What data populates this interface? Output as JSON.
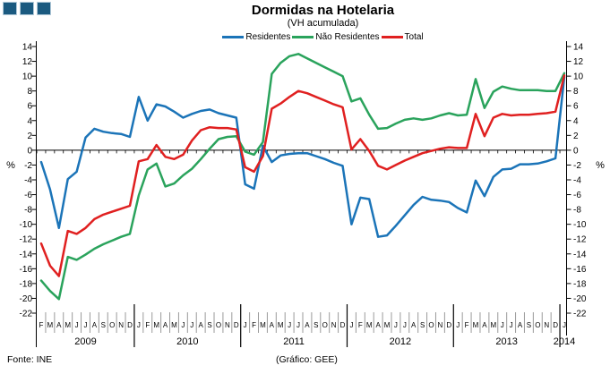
{
  "title": "Dormidas na Hotelaria",
  "subtitle": "(VH acumulada)",
  "legend": [
    {
      "label": "Residentes",
      "color": "#1b74b8"
    },
    {
      "label": "Não Residentes",
      "color": "#2aa35c"
    },
    {
      "label": "Total",
      "color": "#e02020"
    }
  ],
  "logo": {
    "squares": 3,
    "fill": "#1b5a80",
    "border": "#b0c8d8"
  },
  "footer": {
    "source": "Fonte: INE",
    "credit": "(Gráfico: GEE)"
  },
  "chart_data": {
    "type": "line",
    "title": "Dormidas na Hotelaria",
    "subtitle": "(VH acumulada)",
    "ylabel": "%",
    "ylim": [
      -22,
      14
    ],
    "ytick_step": 2,
    "grid": false,
    "legend_position": "top",
    "yticks": [
      14,
      12,
      10,
      8,
      6,
      4,
      2,
      0,
      -2,
      -4,
      -6,
      -8,
      -10,
      -12,
      -14,
      -16,
      -18,
      -20,
      -22
    ],
    "months": [
      "F",
      "M",
      "A",
      "M",
      "J",
      "J",
      "A",
      "S",
      "O",
      "N",
      "D",
      "J",
      "F",
      "M",
      "A",
      "M",
      "J",
      "J",
      "A",
      "S",
      "O",
      "N",
      "D",
      "J",
      "F",
      "M",
      "A",
      "M",
      "J",
      "J",
      "A",
      "S",
      "O",
      "N",
      "D",
      "J",
      "F",
      "M",
      "A",
      "M",
      "J",
      "J",
      "A",
      "S",
      "O",
      "N",
      "D",
      "J",
      "F",
      "M",
      "A",
      "M",
      "J",
      "J",
      "A",
      "S",
      "O",
      "N",
      "D",
      "J"
    ],
    "years": [
      {
        "label": "2009",
        "months": 11
      },
      {
        "label": "2010",
        "months": 12
      },
      {
        "label": "2011",
        "months": 12
      },
      {
        "label": "2012",
        "months": 12
      },
      {
        "label": "2013",
        "months": 12
      },
      {
        "label": "2014",
        "months": 1
      }
    ],
    "series": [
      {
        "name": "Residentes",
        "key": "residentes",
        "color": "#1b74b8",
        "values": [
          -1.6,
          -5.3,
          -10.5,
          -3.9,
          -2.9,
          1.7,
          2.9,
          2.5,
          2.3,
          2.2,
          1.8,
          7.2,
          4.0,
          6.2,
          5.9,
          5.2,
          4.4,
          4.9,
          5.3,
          5.5,
          5.0,
          4.7,
          4.4,
          -4.6,
          -5.2,
          0.6,
          -1.6,
          -0.7,
          -0.5,
          -0.4,
          -0.4,
          -0.8,
          -1.2,
          -1.7,
          -2.1,
          -10.0,
          -6.4,
          -6.6,
          -11.7,
          -11.5,
          -10.2,
          -8.8,
          -7.4,
          -6.3,
          -6.7,
          -6.8,
          -7.0,
          -7.8,
          -8.4,
          -4.1,
          -6.2,
          -3.6,
          -2.6,
          -2.5,
          -1.9,
          -1.9,
          -1.8,
          -1.5,
          -1.1,
          9.9
        ]
      },
      {
        "name": "Não Residentes",
        "key": "nao-residentes",
        "color": "#2aa35c",
        "values": [
          -17.6,
          -19.0,
          -20.1,
          -14.4,
          -14.8,
          -14.1,
          -13.3,
          -12.7,
          -12.2,
          -11.7,
          -11.3,
          -6.1,
          -2.6,
          -1.8,
          -4.9,
          -4.5,
          -3.4,
          -2.5,
          -1.2,
          0.2,
          1.5,
          1.8,
          1.9,
          -0.2,
          -0.6,
          1.1,
          10.3,
          11.8,
          12.7,
          13.0,
          12.4,
          11.8,
          11.2,
          10.6,
          10.0,
          6.6,
          7.0,
          4.8,
          2.9,
          3.0,
          3.6,
          4.1,
          4.3,
          4.1,
          4.3,
          4.7,
          5.0,
          4.7,
          4.8,
          9.6,
          5.7,
          7.9,
          8.6,
          8.3,
          8.1,
          8.1,
          8.1,
          8.0,
          8.0,
          10.4
        ]
      },
      {
        "name": "Total",
        "key": "total",
        "color": "#e02020",
        "values": [
          -12.6,
          -15.6,
          -17.0,
          -10.9,
          -11.3,
          -10.5,
          -9.3,
          -8.7,
          -8.3,
          -7.9,
          -7.5,
          -1.5,
          -1.2,
          0.7,
          -0.9,
          -1.2,
          -0.6,
          1.3,
          2.7,
          3.1,
          3.0,
          3.0,
          2.8,
          -2.3,
          -2.9,
          -0.8,
          5.6,
          6.3,
          7.2,
          8.0,
          7.7,
          7.2,
          6.7,
          6.2,
          5.8,
          0.1,
          1.5,
          -0.1,
          -2.1,
          -2.6,
          -2.0,
          -1.4,
          -0.9,
          -0.4,
          -0.1,
          0.2,
          0.4,
          0.3,
          0.3,
          4.9,
          1.9,
          4.4,
          4.9,
          4.7,
          4.8,
          4.8,
          4.9,
          5.0,
          5.2,
          10.1
        ]
      }
    ]
  }
}
